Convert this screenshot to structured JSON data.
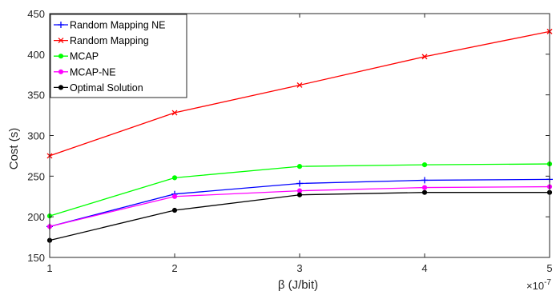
{
  "chart_data": {
    "type": "line",
    "xlabel": "β (J/bit)",
    "ylabel": "Cost (s)",
    "x_exponent_label": "×10",
    "x_exponent_power": "-7",
    "x": [
      1,
      2,
      3,
      4,
      5
    ],
    "x_tick_labels": [
      "1",
      "2",
      "3",
      "4",
      "5"
    ],
    "xlim": [
      1,
      5
    ],
    "ylim": [
      150,
      450
    ],
    "y_ticks": [
      150,
      200,
      250,
      300,
      350,
      400,
      450
    ],
    "y_tick_labels": [
      "150",
      "200",
      "250",
      "300",
      "350",
      "400",
      "450"
    ],
    "grid": false,
    "legend_position": "top-left",
    "series": [
      {
        "name": "Random Mapping NE",
        "color": "#0000ff",
        "marker": "plus",
        "values": [
          188,
          228,
          241,
          245,
          246
        ]
      },
      {
        "name": "Random Mapping",
        "color": "#ff0000",
        "marker": "x",
        "values": [
          275,
          328,
          362,
          397,
          428
        ]
      },
      {
        "name": "MCAP",
        "color": "#00ff00",
        "marker": "circle",
        "values": [
          201,
          248,
          262,
          264,
          265
        ]
      },
      {
        "name": "MCAP-NE",
        "color": "#ff00ff",
        "marker": "circle",
        "values": [
          188,
          225,
          232,
          236,
          237
        ]
      },
      {
        "name": "Optimal Solution",
        "color": "#000000",
        "marker": "circle",
        "values": [
          171,
          208,
          227,
          230,
          230
        ]
      }
    ]
  }
}
